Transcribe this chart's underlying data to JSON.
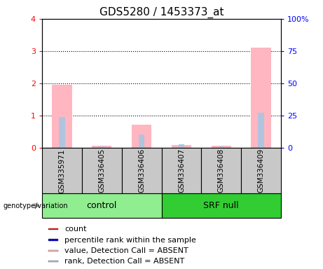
{
  "title": "GDS5280 / 1453373_at",
  "samples": [
    "GSM335971",
    "GSM336405",
    "GSM336406",
    "GSM336407",
    "GSM336408",
    "GSM336409"
  ],
  "groups": [
    "control",
    "control",
    "control",
    "SRF null",
    "SRF null",
    "SRF null"
  ],
  "bar_pink_heights": [
    1.95,
    0.07,
    0.72,
    0.1,
    0.07,
    3.1
  ],
  "bar_blue_heights": [
    0.97,
    0.05,
    0.42,
    0.12,
    0.05,
    1.1
  ],
  "ylim_left": [
    0,
    4
  ],
  "ylim_right": [
    0,
    100
  ],
  "yticks_left": [
    0,
    1,
    2,
    3,
    4
  ],
  "yticks_right": [
    0,
    25,
    50,
    75,
    100
  ],
  "yticklabels_left": [
    "0",
    "1",
    "2",
    "3",
    "4"
  ],
  "yticklabels_right": [
    "0",
    "25",
    "50",
    "75",
    "100%"
  ],
  "color_pink": "#FFB6C1",
  "color_lightblue": "#B0C4DE",
  "bg_label_gray": "#C8C8C8",
  "bg_control": "#90EE90",
  "bg_srfnull": "#32CD32",
  "group_label_fontsize": 9,
  "sample_label_fontsize": 7.5,
  "tick_label_fontsize": 8,
  "title_fontsize": 11,
  "legend_items": [
    "count",
    "percentile rank within the sample",
    "value, Detection Call = ABSENT",
    "rank, Detection Call = ABSENT"
  ],
  "legend_colors": [
    "#FF0000",
    "#0000CD",
    "#FFB6C1",
    "#B0C4DE"
  ],
  "legend_fontsize": 8
}
